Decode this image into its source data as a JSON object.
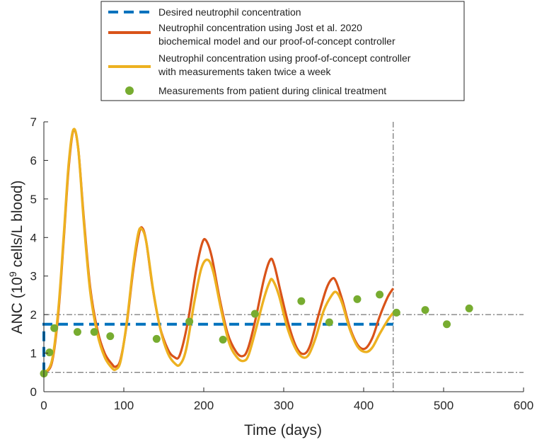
{
  "chart_data": {
    "type": "line",
    "xlabel": "Time (days)",
    "ylabel": {
      "prefix": "ANC (10",
      "sup": "9",
      "suffix": " cells/L blood)"
    },
    "xlim": [
      0,
      600
    ],
    "ylim": [
      0,
      7
    ],
    "xticks": [
      "0",
      "100",
      "200",
      "300",
      "400",
      "500",
      "600"
    ],
    "yticks": [
      "0",
      "1",
      "2",
      "3",
      "4",
      "5",
      "6",
      "7"
    ],
    "grid": false,
    "legend_placement": "top-center",
    "legend": [
      {
        "key": "desired",
        "lines": [
          "Desired neutrophil concentration"
        ],
        "color": "#0072BD",
        "style": "dashed"
      },
      {
        "key": "jost",
        "lines": [
          "Neutrophil concentration using Jost et al. 2020",
          "biochemical model and our proof-of-concept controller"
        ],
        "color": "#D95319",
        "style": "solid"
      },
      {
        "key": "twice",
        "lines": [
          "Neutrophil concentration using proof-of-concept controller",
          "with measurements taken twice a week"
        ],
        "color": "#EDB120",
        "style": "solid"
      },
      {
        "key": "measurements",
        "lines": [
          "Measurements from patient during clinical treatment"
        ],
        "color": "#77AC30",
        "style": "marker"
      }
    ],
    "reference_lines": {
      "horizontal": [
        0.5,
        2.0
      ],
      "vertical": [
        437
      ],
      "color": "#555555",
      "style": "dash-dot"
    },
    "desired_line": {
      "value": 1.75,
      "x_start": 0,
      "x_end": 437
    },
    "series": [
      {
        "name": "Neutrophil concentration using Jost et al. 2020 biochemical model and our proof-of-concept controller",
        "color": "#D95319",
        "points": [
          [
            0,
            0.48
          ],
          [
            10,
            0.75
          ],
          [
            18,
            2.0
          ],
          [
            25,
            4.0
          ],
          [
            31,
            5.8
          ],
          [
            37,
            6.78
          ],
          [
            43,
            6.3
          ],
          [
            50,
            4.5
          ],
          [
            58,
            2.7
          ],
          [
            67,
            1.6
          ],
          [
            76,
            1.0
          ],
          [
            85,
            0.72
          ],
          [
            90,
            0.65
          ],
          [
            96,
            0.85
          ],
          [
            104,
            1.8
          ],
          [
            112,
            3.2
          ],
          [
            119,
            4.1
          ],
          [
            123,
            4.25
          ],
          [
            128,
            3.9
          ],
          [
            136,
            2.7
          ],
          [
            145,
            1.7
          ],
          [
            155,
            1.1
          ],
          [
            163,
            0.9
          ],
          [
            170,
            0.95
          ],
          [
            180,
            1.8
          ],
          [
            190,
            3.1
          ],
          [
            198,
            3.85
          ],
          [
            203,
            3.92
          ],
          [
            210,
            3.5
          ],
          [
            220,
            2.4
          ],
          [
            230,
            1.5
          ],
          [
            240,
            1.05
          ],
          [
            248,
            0.92
          ],
          [
            255,
            1.1
          ],
          [
            265,
            1.9
          ],
          [
            275,
            2.9
          ],
          [
            283,
            3.42
          ],
          [
            288,
            3.3
          ],
          [
            296,
            2.6
          ],
          [
            306,
            1.75
          ],
          [
            316,
            1.15
          ],
          [
            325,
            0.98
          ],
          [
            333,
            1.2
          ],
          [
            343,
            1.95
          ],
          [
            353,
            2.65
          ],
          [
            360,
            2.92
          ],
          [
            365,
            2.88
          ],
          [
            373,
            2.4
          ],
          [
            383,
            1.65
          ],
          [
            393,
            1.2
          ],
          [
            402,
            1.12
          ],
          [
            411,
            1.4
          ],
          [
            420,
            1.95
          ],
          [
            430,
            2.45
          ],
          [
            437,
            2.68
          ]
        ]
      },
      {
        "name": "Neutrophil concentration using proof-of-concept controller with measurements taken twice a week",
        "color": "#EDB120",
        "points": [
          [
            0,
            0.48
          ],
          [
            10,
            0.8
          ],
          [
            18,
            2.1
          ],
          [
            25,
            4.1
          ],
          [
            31,
            5.9
          ],
          [
            37,
            6.8
          ],
          [
            43,
            6.3
          ],
          [
            50,
            4.4
          ],
          [
            58,
            2.6
          ],
          [
            67,
            1.5
          ],
          [
            76,
            0.9
          ],
          [
            85,
            0.62
          ],
          [
            90,
            0.58
          ],
          [
            96,
            0.8
          ],
          [
            104,
            1.85
          ],
          [
            112,
            3.3
          ],
          [
            118,
            4.1
          ],
          [
            122,
            4.23
          ],
          [
            128,
            3.9
          ],
          [
            137,
            2.6
          ],
          [
            146,
            1.6
          ],
          [
            155,
            1.0
          ],
          [
            163,
            0.75
          ],
          [
            170,
            0.7
          ],
          [
            178,
            1.1
          ],
          [
            188,
            2.3
          ],
          [
            197,
            3.2
          ],
          [
            205,
            3.42
          ],
          [
            212,
            3.1
          ],
          [
            222,
            2.1
          ],
          [
            232,
            1.25
          ],
          [
            242,
            0.88
          ],
          [
            250,
            0.8
          ],
          [
            256,
            0.95
          ],
          [
            265,
            1.6
          ],
          [
            275,
            2.4
          ],
          [
            282,
            2.83
          ],
          [
            286,
            2.9
          ],
          [
            294,
            2.5
          ],
          [
            304,
            1.7
          ],
          [
            314,
            1.15
          ],
          [
            323,
            0.9
          ],
          [
            331,
            0.95
          ],
          [
            340,
            1.4
          ],
          [
            350,
            2.1
          ],
          [
            360,
            2.5
          ],
          [
            366,
            2.58
          ],
          [
            373,
            2.3
          ],
          [
            383,
            1.6
          ],
          [
            393,
            1.15
          ],
          [
            403,
            1.03
          ],
          [
            411,
            1.15
          ],
          [
            420,
            1.5
          ],
          [
            430,
            1.85
          ],
          [
            437,
            2.05
          ]
        ]
      },
      {
        "name": "Measurements from patient during clinical treatment",
        "color": "#77AC30",
        "points": [
          [
            0,
            0.47
          ],
          [
            7,
            1.02
          ],
          [
            13,
            1.65
          ],
          [
            42,
            1.55
          ],
          [
            63,
            1.55
          ],
          [
            83,
            1.44
          ],
          [
            141,
            1.37
          ],
          [
            182,
            1.82
          ],
          [
            224,
            1.35
          ],
          [
            264,
            2.02
          ],
          [
            322,
            2.35
          ],
          [
            357,
            1.8
          ],
          [
            392,
            2.4
          ],
          [
            420,
            2.52
          ],
          [
            441,
            2.05
          ],
          [
            477,
            2.12
          ],
          [
            504,
            1.75
          ],
          [
            532,
            2.16
          ]
        ]
      }
    ]
  }
}
